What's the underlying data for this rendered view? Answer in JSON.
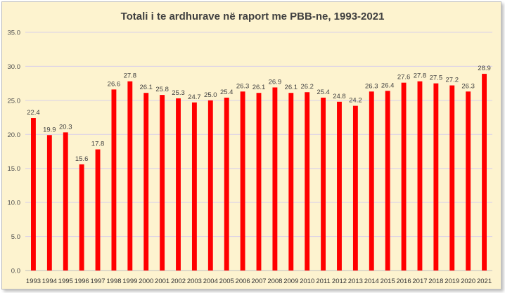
{
  "chart_data": {
    "type": "bar",
    "title": "Totali i te ardhurave në raport me PBB-ne, 1993-2021",
    "xlabel": "",
    "ylabel": "",
    "ylim": [
      0,
      35
    ],
    "yticks": [
      "0.0",
      "5.0",
      "10.0",
      "15.0",
      "20.0",
      "25.0",
      "30.0",
      "35.0"
    ],
    "grid": true,
    "bar_color": "#ff0000",
    "background_color": "#fdf3cf",
    "categories": [
      "1993",
      "1994",
      "1995",
      "1996",
      "1997",
      "1998",
      "1999",
      "2000",
      "2001",
      "2002",
      "2003",
      "2004",
      "2005",
      "2006",
      "2007",
      "2008",
      "2009",
      "2010",
      "2011",
      "2012",
      "2013",
      "2014",
      "2015",
      "2016",
      "2017",
      "2018",
      "2019",
      "2020",
      "2021"
    ],
    "values": [
      22.4,
      19.9,
      20.3,
      15.6,
      17.8,
      26.6,
      27.8,
      26.1,
      25.8,
      25.3,
      24.7,
      25.0,
      25.4,
      26.3,
      26.1,
      26.9,
      26.1,
      26.2,
      25.4,
      24.8,
      24.2,
      26.3,
      26.4,
      27.6,
      27.8,
      27.5,
      27.2,
      26.3,
      28.9
    ],
    "labels": [
      "22.4",
      "19.9",
      "20.3",
      "15.6",
      "17.8",
      "26.6",
      "27.8",
      "26.1",
      "25.8",
      "25.3",
      "24.7",
      "25.0",
      "25.4",
      "26.3",
      "26.1",
      "26.9",
      "26.1",
      "26.2",
      "25.4",
      "24.8",
      "24.2",
      "26.3",
      "26.4",
      "27.6",
      "27.8",
      "27.5",
      "27.2",
      "26.3",
      "28.9"
    ]
  }
}
